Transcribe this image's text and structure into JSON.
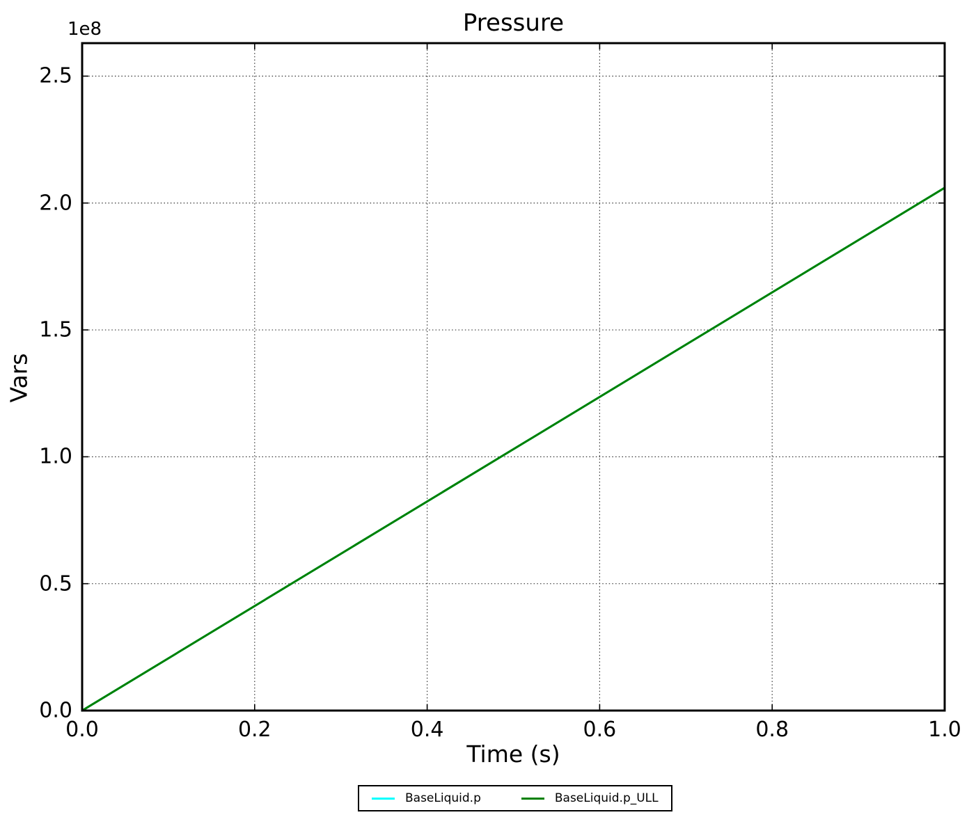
{
  "figure": {
    "title": "Pressure",
    "xlabel": "Time (s)",
    "ylabel": "Vars",
    "offset_text": "1e8"
  },
  "chart_data": {
    "type": "line",
    "title": "Pressure",
    "xlabel": "Time (s)",
    "ylabel": "Vars",
    "y_offset_text": "1e8",
    "xlim": [
      0.0,
      1.0
    ],
    "ylim": [
      0,
      263000000
    ],
    "xticks": [
      {
        "value": 0.0,
        "label": "0.0"
      },
      {
        "value": 0.2,
        "label": "0.2"
      },
      {
        "value": 0.4,
        "label": "0.4"
      },
      {
        "value": 0.6,
        "label": "0.6"
      },
      {
        "value": 0.8,
        "label": "0.8"
      },
      {
        "value": 1.0,
        "label": "1.0"
      }
    ],
    "yticks": [
      {
        "value": 0,
        "label": "0.0"
      },
      {
        "value": 50000000,
        "label": "0.5"
      },
      {
        "value": 100000000,
        "label": "1.0"
      },
      {
        "value": 150000000,
        "label": "1.5"
      },
      {
        "value": 200000000,
        "label": "2.0"
      },
      {
        "value": 250000000,
        "label": "2.5"
      }
    ],
    "grid": {
      "visible": true,
      "style": "dotted",
      "color": "#333333"
    },
    "legend": {
      "position": "bottom-center",
      "entries": [
        {
          "label": "BaseLiquid.p",
          "color": "#00ffff"
        },
        {
          "label": "BaseLiquid.p_ULL",
          "color": "#008000"
        }
      ]
    },
    "series": [
      {
        "name": "BaseLiquid.p",
        "color": "#00ffff",
        "points": [
          [
            0.0,
            0
          ],
          [
            1.0,
            206000000
          ]
        ]
      },
      {
        "name": "BaseLiquid.p_ULL",
        "color": "#008000",
        "points": [
          [
            0.0,
            0
          ],
          [
            1.0,
            206000000
          ]
        ]
      }
    ]
  }
}
